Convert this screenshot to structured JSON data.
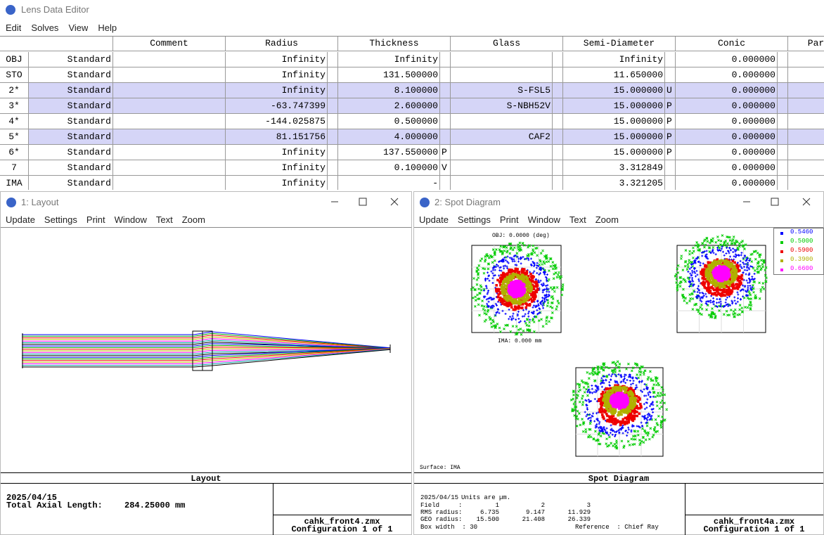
{
  "editor": {
    "title": "Lens Data Editor",
    "menu": [
      "Edit",
      "Solves",
      "View",
      "Help"
    ],
    "columns": [
      "Comment",
      "Radius",
      "Thickness",
      "Glass",
      "Semi-Diameter",
      "Conic",
      "Par"
    ],
    "rows": [
      {
        "surface": "OBJ",
        "type": "Standard",
        "radius": "Infinity",
        "thickness": "Infinity",
        "semi_diameter": "Infinity",
        "conic": "0.000000"
      },
      {
        "surface": "STO",
        "type": "Standard",
        "radius": "Infinity",
        "thickness": "131.500000",
        "semi_diameter": "11.650000",
        "conic": "0.000000"
      },
      {
        "surface": "2*",
        "type": "Standard",
        "radius": "Infinity",
        "thickness": "8.100000",
        "glass": "S-FSL5",
        "semi_diameter": "15.000000",
        "sd_solve": "U",
        "conic": "0.000000",
        "selected": true
      },
      {
        "surface": "3*",
        "type": "Standard",
        "radius": "-63.747399",
        "thickness": "2.600000",
        "glass": "S-NBH52V",
        "semi_diameter": "15.000000",
        "sd_solve": "P",
        "conic": "0.000000",
        "selected": true
      },
      {
        "surface": "4*",
        "type": "Standard",
        "radius": "-144.025875",
        "thickness": "0.500000",
        "semi_diameter": "15.000000",
        "sd_solve": "P",
        "conic": "0.000000"
      },
      {
        "surface": "5*",
        "type": "Standard",
        "radius": "81.151756",
        "thickness": "4.000000",
        "glass": "CAF2",
        "semi_diameter": "15.000000",
        "sd_solve": "P",
        "conic": "0.000000",
        "selected": true
      },
      {
        "surface": "6*",
        "type": "Standard",
        "radius": "Infinity",
        "thickness": "137.550000",
        "thickness_solve": "P",
        "semi_diameter": "15.000000",
        "sd_solve": "P",
        "conic": "0.000000"
      },
      {
        "surface": "7",
        "type": "Standard",
        "radius": "Infinity",
        "thickness": "0.100000",
        "thickness_solve": "V",
        "semi_diameter": "3.312849",
        "conic": "0.000000"
      },
      {
        "surface": "IMA",
        "type": "Standard",
        "radius": "Infinity",
        "thickness": "-",
        "semi_diameter": "3.321205",
        "conic": "0.000000"
      }
    ]
  },
  "layout_window": {
    "title": "1: Layout",
    "menu": [
      "Update",
      "Settings",
      "Print",
      "Window",
      "Text",
      "Zoom"
    ],
    "plot_label": "Layout",
    "date": "2025/04/15",
    "total_label": "Total Axial Length:",
    "total_value": "284.25000 mm",
    "file": "cahk_front4.zmx",
    "config": "Configuration 1 of 1"
  },
  "spot_window": {
    "title": "2: Spot Diagram",
    "menu": [
      "Update",
      "Settings",
      "Print",
      "Window",
      "Text",
      "Zoom"
    ],
    "field_labels": [
      "OBJ: 0.0000 (deg)",
      "IMA: 0.000 mm"
    ],
    "surface": "Surface: IMA",
    "legend": [
      {
        "label": "0.5460",
        "color": "#0000ff"
      },
      {
        "label": "0.5000",
        "color": "#00cc00"
      },
      {
        "label": "0.5900",
        "color": "#ee0000"
      },
      {
        "label": "0.3900",
        "color": "#b0b000"
      },
      {
        "label": "0.6600",
        "color": "#ff00ff"
      }
    ],
    "plot_label": "Spot Diagram",
    "date": "2025/04/15",
    "units": "Units are µm.",
    "stats": [
      [
        "Field",
        ":",
        "1",
        "2",
        "3"
      ],
      [
        "RMS radius",
        ":",
        "6.735",
        "9.147",
        "11.929"
      ],
      [
        "GEO radius",
        ":",
        "15.500",
        "21.408",
        "26.339"
      ]
    ],
    "box_width": "Box width  : 30",
    "reference": "Reference  : Chief Ray",
    "file": "cahk_front4a.zmx",
    "config": "Configuration 1 of 1"
  }
}
